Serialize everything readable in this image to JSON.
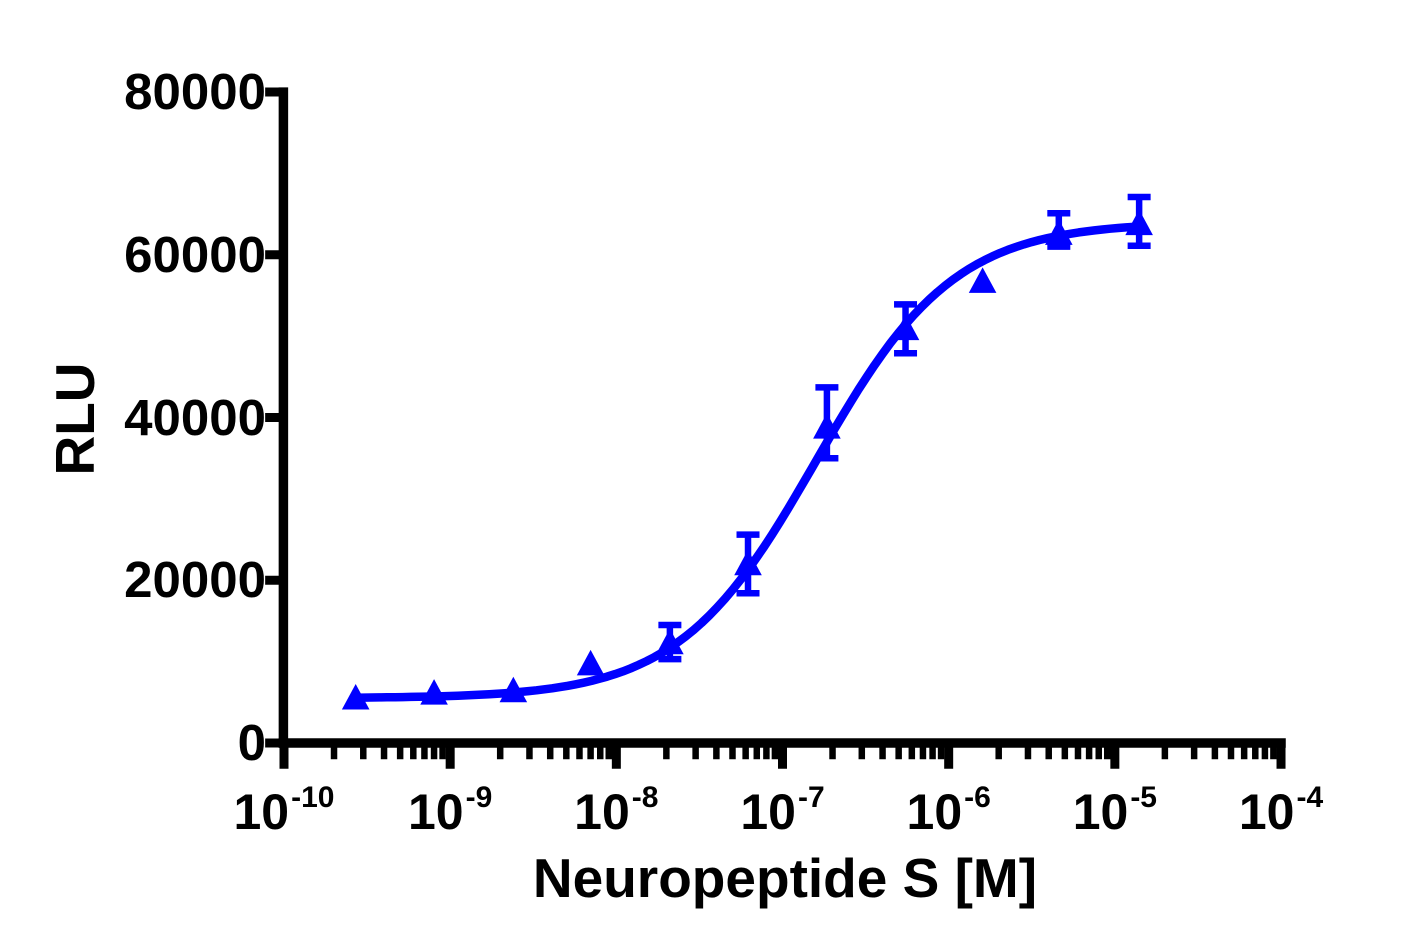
{
  "chart_data": {
    "type": "scatter",
    "subtype": "dose-response-curve",
    "title": "",
    "xlabel": "Neuropeptide S [M]",
    "ylabel": "RLU",
    "x_scale": "log10",
    "xlim": [
      1e-10,
      0.0001
    ],
    "ylim": [
      0,
      80000
    ],
    "grid": false,
    "legend": "none",
    "background": "#FFFFFF",
    "axis_color": "#000000",
    "y_ticks": [
      {
        "label": "0",
        "value": 0
      },
      {
        "label": "20000",
        "value": 20000
      },
      {
        "label": "40000",
        "value": 40000
      },
      {
        "label": "60000",
        "value": 60000
      },
      {
        "label": "80000",
        "value": 80000
      }
    ],
    "x_ticks": [
      {
        "base": "10",
        "exp": "-10",
        "value": 1e-10
      },
      {
        "base": "10",
        "exp": "-9",
        "value": 1e-09
      },
      {
        "base": "10",
        "exp": "-8",
        "value": 1e-08
      },
      {
        "base": "10",
        "exp": "-7",
        "value": 1e-07
      },
      {
        "base": "10",
        "exp": "-6",
        "value": 1e-06
      },
      {
        "base": "10",
        "exp": "-5",
        "value": 1e-05
      },
      {
        "base": "10",
        "exp": "-4",
        "value": 0.0001
      }
    ],
    "x_minor_ticks": [
      2,
      3,
      4,
      5,
      6,
      7,
      8,
      9
    ],
    "x_minor_decades": [
      -10,
      -9,
      -8,
      -7,
      -6,
      -5
    ],
    "series": [
      {
        "name": "Neuropeptide S",
        "color": "#0000FF",
        "marker": "filled-triangle-up",
        "points": [
          {
            "x": 2.7e-10,
            "y": 5400,
            "y_lo": null,
            "y_hi": null
          },
          {
            "x": 8e-10,
            "y": 6000,
            "y_lo": null,
            "y_hi": null
          },
          {
            "x": 2.4e-09,
            "y": 6300,
            "y_lo": null,
            "y_hi": null
          },
          {
            "x": 7e-09,
            "y": 9600,
            "y_lo": null,
            "y_hi": null
          },
          {
            "x": 2.1e-08,
            "y": 12200,
            "y_lo": 10300,
            "y_hi": 14500
          },
          {
            "x": 6.2e-08,
            "y": 21900,
            "y_lo": 18400,
            "y_hi": 25600
          },
          {
            "x": 1.85e-07,
            "y": 38700,
            "y_lo": 35000,
            "y_hi": 43700
          },
          {
            "x": 5.5e-07,
            "y": 50800,
            "y_lo": 47900,
            "y_hi": 53900
          },
          {
            "x": 1.6e-06,
            "y": 56600,
            "y_lo": null,
            "y_hi": null
          },
          {
            "x": 4.6e-06,
            "y": 62500,
            "y_lo": 61000,
            "y_hi": 65100
          },
          {
            "x": 1.4e-05,
            "y": 63700,
            "y_lo": 61100,
            "y_hi": 67100
          }
        ],
        "fit": {
          "model": "4PL",
          "bottom": 5500,
          "top": 64000,
          "ec50": 1.6e-07,
          "hill": 1.05,
          "x_start": 2.7e-10,
          "x_end": 1.45e-05
        }
      }
    ]
  }
}
